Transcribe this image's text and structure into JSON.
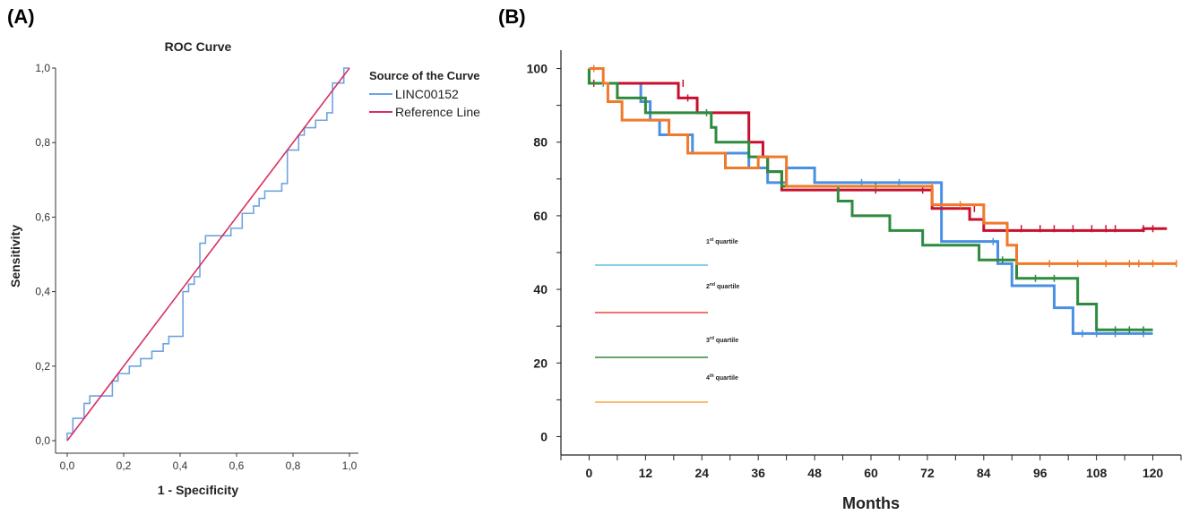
{
  "panels": {
    "a_label": "(A)",
    "b_label": "(B)"
  },
  "chart_data": [
    {
      "type": "line",
      "title": "ROC Curve",
      "xlabel": "1 - Specificity",
      "ylabel": "Sensitivity",
      "xlim": [
        0,
        1
      ],
      "ylim": [
        0,
        1
      ],
      "xticks": [
        "0,0",
        "0,2",
        "0,4",
        "0,6",
        "0,8",
        "1,0"
      ],
      "yticks": [
        "0,0",
        "0,2",
        "0,4",
        "0,6",
        "0,8",
        "1,0"
      ],
      "grid": false,
      "legend": {
        "title": "Source of the Curve",
        "position": "top-right-outside",
        "entries": [
          {
            "label": "LINC00152",
            "color": "#6fa3e0"
          },
          {
            "label": "Reference Line",
            "color": "#d93060"
          }
        ]
      },
      "series": [
        {
          "name": "LINC00152",
          "color": "#6fa3e0",
          "points": [
            [
              0,
              0
            ],
            [
              0,
              0.02
            ],
            [
              0.02,
              0.02
            ],
            [
              0.02,
              0.06
            ],
            [
              0.06,
              0.06
            ],
            [
              0.06,
              0.1
            ],
            [
              0.08,
              0.1
            ],
            [
              0.08,
              0.12
            ],
            [
              0.16,
              0.12
            ],
            [
              0.16,
              0.16
            ],
            [
              0.18,
              0.16
            ],
            [
              0.18,
              0.18
            ],
            [
              0.22,
              0.18
            ],
            [
              0.22,
              0.2
            ],
            [
              0.26,
              0.2
            ],
            [
              0.26,
              0.22
            ],
            [
              0.3,
              0.22
            ],
            [
              0.3,
              0.24
            ],
            [
              0.34,
              0.24
            ],
            [
              0.34,
              0.26
            ],
            [
              0.36,
              0.26
            ],
            [
              0.36,
              0.28
            ],
            [
              0.41,
              0.28
            ],
            [
              0.41,
              0.4
            ],
            [
              0.43,
              0.4
            ],
            [
              0.43,
              0.42
            ],
            [
              0.45,
              0.42
            ],
            [
              0.45,
              0.44
            ],
            [
              0.47,
              0.44
            ],
            [
              0.47,
              0.53
            ],
            [
              0.49,
              0.53
            ],
            [
              0.49,
              0.55
            ],
            [
              0.58,
              0.55
            ],
            [
              0.58,
              0.57
            ],
            [
              0.62,
              0.57
            ],
            [
              0.62,
              0.61
            ],
            [
              0.66,
              0.61
            ],
            [
              0.66,
              0.63
            ],
            [
              0.68,
              0.63
            ],
            [
              0.68,
              0.65
            ],
            [
              0.7,
              0.65
            ],
            [
              0.7,
              0.67
            ],
            [
              0.76,
              0.67
            ],
            [
              0.76,
              0.69
            ],
            [
              0.78,
              0.69
            ],
            [
              0.78,
              0.78
            ],
            [
              0.82,
              0.78
            ],
            [
              0.82,
              0.82
            ],
            [
              0.84,
              0.82
            ],
            [
              0.84,
              0.84
            ],
            [
              0.88,
              0.84
            ],
            [
              0.88,
              0.86
            ],
            [
              0.92,
              0.86
            ],
            [
              0.92,
              0.88
            ],
            [
              0.94,
              0.88
            ],
            [
              0.94,
              0.96
            ],
            [
              0.98,
              0.96
            ],
            [
              0.98,
              1.0
            ],
            [
              1.0,
              1.0
            ]
          ]
        },
        {
          "name": "Reference Line",
          "color": "#d93060",
          "points": [
            [
              0,
              0
            ],
            [
              1,
              1
            ]
          ]
        }
      ]
    },
    {
      "type": "line",
      "title": "",
      "xlabel": "Months",
      "ylabel": "",
      "xlim": [
        -6,
        126
      ],
      "ylim": [
        -5,
        105
      ],
      "xticks": [
        0,
        12,
        24,
        36,
        48,
        60,
        72,
        84,
        96,
        108,
        120
      ],
      "yticks": [
        0,
        20,
        40,
        60,
        80,
        100
      ],
      "grid": false,
      "legend": {
        "position": "left-inside",
        "entries": [
          {
            "label": "1",
            "suffix": "st",
            "rest": " quartile",
            "color": "#5bc0de"
          },
          {
            "label": "2",
            "suffix": "nd",
            "rest": " quartile",
            "color": "#e8473e"
          },
          {
            "label": "3",
            "suffix": "rd",
            "rest": " quartile",
            "color": "#2e8b3e"
          },
          {
            "label": "4",
            "suffix": "th",
            "rest": " quartile",
            "color": "#f5a742"
          }
        ]
      },
      "series": [
        {
          "name": "blue",
          "color": "#4a90e2",
          "points": [
            [
              0,
              100
            ],
            [
              0,
              96
            ],
            [
              11,
              96
            ],
            [
              11,
              91
            ],
            [
              13,
              91
            ],
            [
              13,
              86
            ],
            [
              15,
              86
            ],
            [
              15,
              82
            ],
            [
              22,
              82
            ],
            [
              22,
              77
            ],
            [
              34,
              77
            ],
            [
              34,
              73
            ],
            [
              38,
              73
            ],
            [
              38,
              69
            ],
            [
              42,
              69
            ],
            [
              42,
              73
            ],
            [
              48,
              73
            ],
            [
              48,
              69
            ],
            [
              75,
              69
            ],
            [
              75,
              53
            ],
            [
              87,
              53
            ],
            [
              87,
              47
            ],
            [
              90,
              47
            ],
            [
              90,
              41
            ],
            [
              99,
              41
            ],
            [
              99,
              35
            ],
            [
              103,
              35
            ],
            [
              103,
              28
            ],
            [
              120,
              28
            ]
          ],
          "censors": [
            [
              3,
              96
            ],
            [
              12,
              91
            ],
            [
              58,
              69
            ],
            [
              66,
              69
            ],
            [
              86,
              53
            ],
            [
              105,
              28
            ],
            [
              108,
              28
            ],
            [
              112,
              28
            ],
            [
              118,
              28
            ]
          ]
        },
        {
          "name": "red",
          "color": "#c8102e",
          "points": [
            [
              0,
              100
            ],
            [
              0,
              96
            ],
            [
              19,
              96
            ],
            [
              19,
              92
            ],
            [
              23,
              92
            ],
            [
              23,
              88
            ],
            [
              34,
              88
            ],
            [
              34,
              80
            ],
            [
              37,
              80
            ],
            [
              37,
              76
            ],
            [
              38,
              76
            ],
            [
              38,
              72
            ],
            [
              41,
              72
            ],
            [
              41,
              67
            ],
            [
              73,
              67
            ],
            [
              73,
              62
            ],
            [
              81,
              62
            ],
            [
              81,
              59
            ],
            [
              84,
              59
            ],
            [
              84,
              56
            ],
            [
              118,
              56
            ],
            [
              118,
              56.5
            ],
            [
              123,
              56.5
            ]
          ],
          "censors": [
            [
              1,
              96
            ],
            [
              20,
              96
            ],
            [
              21,
              92
            ],
            [
              61,
              67
            ],
            [
              71,
              67
            ],
            [
              82,
              62
            ],
            [
              92,
              56.5
            ],
            [
              96,
              56.5
            ],
            [
              99,
              56.5
            ],
            [
              103,
              56.5
            ],
            [
              107,
              56.5
            ],
            [
              110,
              56.5
            ],
            [
              112,
              56.5
            ],
            [
              118,
              56.5
            ],
            [
              120,
              56.5
            ]
          ]
        },
        {
          "name": "green",
          "color": "#2e8b3e",
          "points": [
            [
              0,
              100
            ],
            [
              0,
              96
            ],
            [
              6,
              96
            ],
            [
              6,
              92
            ],
            [
              12,
              92
            ],
            [
              12,
              88
            ],
            [
              26,
              88
            ],
            [
              26,
              84
            ],
            [
              27,
              84
            ],
            [
              27,
              80
            ],
            [
              34,
              80
            ],
            [
              34,
              76
            ],
            [
              38,
              76
            ],
            [
              38,
              72
            ],
            [
              41,
              72
            ],
            [
              41,
              68
            ],
            [
              53,
              68
            ],
            [
              53,
              64
            ],
            [
              56,
              64
            ],
            [
              56,
              60
            ],
            [
              64,
              60
            ],
            [
              64,
              56
            ],
            [
              71,
              56
            ],
            [
              71,
              52
            ],
            [
              83,
              52
            ],
            [
              83,
              48
            ],
            [
              91,
              48
            ],
            [
              91,
              43
            ],
            [
              104,
              43
            ],
            [
              104,
              36
            ],
            [
              108,
              36
            ],
            [
              108,
              29
            ],
            [
              120,
              29
            ]
          ],
          "censors": [
            [
              25,
              88
            ],
            [
              61,
              68
            ],
            [
              88,
              48
            ],
            [
              95,
              43
            ],
            [
              99,
              43
            ],
            [
              112,
              29
            ],
            [
              115,
              29
            ],
            [
              118,
              29
            ]
          ]
        },
        {
          "name": "orange",
          "color": "#f07a2a",
          "points": [
            [
              0,
              100
            ],
            [
              3,
              100
            ],
            [
              3,
              96
            ],
            [
              4,
              96
            ],
            [
              4,
              91
            ],
            [
              7,
              91
            ],
            [
              7,
              86
            ],
            [
              17,
              86
            ],
            [
              17,
              82
            ],
            [
              21,
              82
            ],
            [
              21,
              77
            ],
            [
              29,
              77
            ],
            [
              29,
              73
            ],
            [
              36,
              73
            ],
            [
              36,
              76
            ],
            [
              42,
              76
            ],
            [
              42,
              68
            ],
            [
              73,
              68
            ],
            [
              73,
              63
            ],
            [
              84,
              63
            ],
            [
              84,
              58
            ],
            [
              89,
              58
            ],
            [
              89,
              52
            ],
            [
              91,
              52
            ],
            [
              91,
              47
            ],
            [
              125,
              47
            ]
          ],
          "censors": [
            [
              1,
              100
            ],
            [
              73,
              68
            ],
            [
              79,
              63
            ],
            [
              98,
              47
            ],
            [
              104,
              47
            ],
            [
              110,
              47
            ],
            [
              115,
              47
            ],
            [
              117,
              47
            ],
            [
              120,
              47
            ],
            [
              125,
              47
            ]
          ]
        }
      ]
    }
  ]
}
